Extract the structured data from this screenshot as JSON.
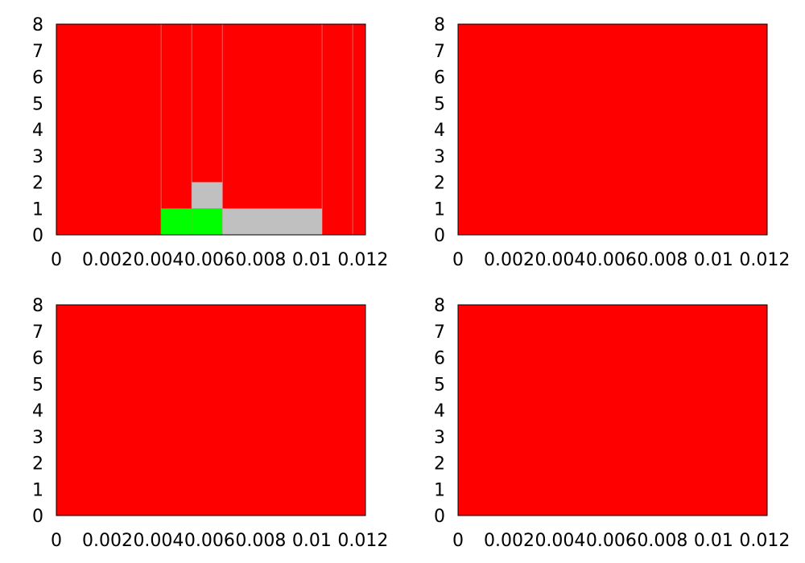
{
  "colors": {
    "background": "#ffffff",
    "default_cell": "#ff0000",
    "green_cell": "#00ff00",
    "gray_cell": "#c0c0c0",
    "frame": "#000000",
    "cell_edge": "#ff5a5a"
  },
  "chart_data": [
    {
      "type": "heatmap",
      "xlim": [
        0,
        0.0121
      ],
      "ylim": [
        0,
        8
      ],
      "xticks": [
        "0",
        "0.002",
        "0.004",
        "0.006",
        "0.008",
        "0.01",
        "0.012"
      ],
      "yticks": [
        "0",
        "1",
        "2",
        "3",
        "4",
        "5",
        "6",
        "7",
        "8"
      ],
      "x_boundaries": [
        0,
        0.0041,
        0.0053,
        0.0065,
        0.0104,
        0.0116,
        0.0121
      ],
      "background_color": "#ff0000",
      "cells": [
        {
          "x0": 0.0041,
          "x1": 0.0053,
          "y0": 0,
          "y1": 1,
          "color": "#00ff00"
        },
        {
          "x0": 0.0053,
          "x1": 0.0065,
          "y0": 0,
          "y1": 1,
          "color": "#00ff00"
        },
        {
          "x0": 0.0053,
          "x1": 0.0065,
          "y0": 1,
          "y1": 2,
          "color": "#c0c0c0"
        },
        {
          "x0": 0.0065,
          "x1": 0.0104,
          "y0": 0,
          "y1": 1,
          "color": "#c0c0c0"
        }
      ]
    },
    {
      "type": "heatmap",
      "xlim": [
        0,
        0.0121
      ],
      "ylim": [
        0,
        8
      ],
      "xticks": [
        "0",
        "0.002",
        "0.004",
        "0.006",
        "0.008",
        "0.01",
        "0.012"
      ],
      "yticks": [
        "0",
        "1",
        "2",
        "3",
        "4",
        "5",
        "6",
        "7",
        "8"
      ],
      "x_boundaries": [],
      "background_color": "#ff0000",
      "cells": []
    },
    {
      "type": "heatmap",
      "xlim": [
        0,
        0.0121
      ],
      "ylim": [
        0,
        8
      ],
      "xticks": [
        "0",
        "0.002",
        "0.004",
        "0.006",
        "0.008",
        "0.01",
        "0.012"
      ],
      "yticks": [
        "0",
        "1",
        "2",
        "3",
        "4",
        "5",
        "6",
        "7",
        "8"
      ],
      "x_boundaries": [],
      "background_color": "#ff0000",
      "cells": []
    },
    {
      "type": "heatmap",
      "xlim": [
        0,
        0.0121
      ],
      "ylim": [
        0,
        8
      ],
      "xticks": [
        "0",
        "0.002",
        "0.004",
        "0.006",
        "0.008",
        "0.01",
        "0.012"
      ],
      "yticks": [
        "0",
        "1",
        "2",
        "3",
        "4",
        "5",
        "6",
        "7",
        "8"
      ],
      "x_boundaries": [],
      "background_color": "#ff0000",
      "cells": []
    }
  ]
}
